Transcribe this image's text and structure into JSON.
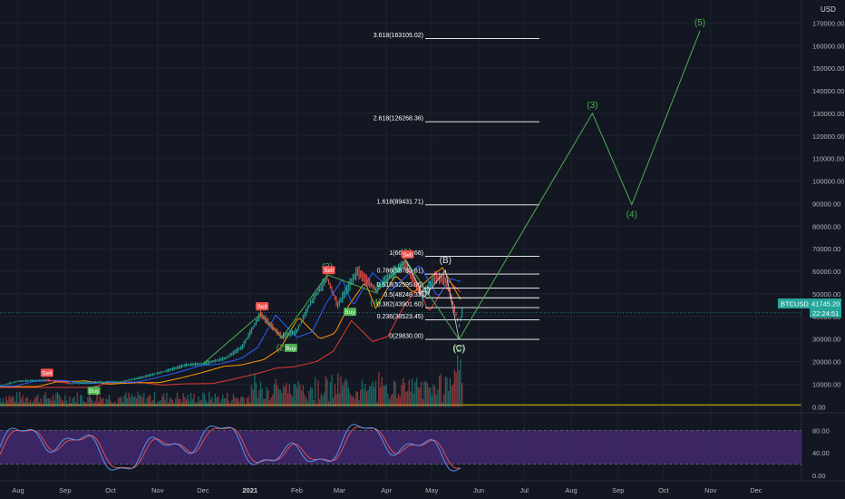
{
  "currency": "USD",
  "ticker_label": "BTCUSD",
  "last_price": "41745.20",
  "countdown": "22:24:51",
  "colors": {
    "background": "#131722",
    "grid": "#1e2230",
    "text": "#b2b5be",
    "wave": "#4caf50",
    "fib": "#ffffff",
    "sell": "#ef5350",
    "buy": "#4caf50",
    "ema_red": "#e53935",
    "ema_orange": "#ff9800",
    "ema_blue": "#2962ff",
    "stoch_k": "#5b9cf6",
    "stoch_d": "#ef5350",
    "stoch_band": "#4a2c7a",
    "price_line": "#26a69a",
    "yellow_line": "#e0c600"
  },
  "chart_data": {
    "type": "line",
    "title": "",
    "x_axis_ticks": [
      "Aug",
      "Sep",
      "Oct",
      "Nov",
      "Dec",
      "2021",
      "Feb",
      "Mar",
      "Apr",
      "May",
      "Jun",
      "Jul",
      "Aug",
      "Sep",
      "Oct",
      "Nov",
      "Dec"
    ],
    "y_axis_ticks": [
      "170000.00",
      "160000.00",
      "150000.00",
      "140000.00",
      "130000.00",
      "120000.00",
      "110000.00",
      "100000.00",
      "90000.00",
      "80000.00",
      "70000.00",
      "60000.00",
      "50000.00",
      "40000.00",
      "30000.00",
      "20000.00",
      "10000.00",
      "0.00"
    ],
    "ylim": [
      -1500,
      177000
    ],
    "price_series": {
      "name": "BTCUSD",
      "x": [
        "2020-07-20",
        "2020-08-01",
        "2020-08-20",
        "2020-09-05",
        "2020-09-20",
        "2020-10-08",
        "2020-10-21",
        "2020-11-05",
        "2020-11-20",
        "2020-12-01",
        "2020-12-16",
        "2020-12-27",
        "2021-01-08",
        "2021-01-22",
        "2021-02-01",
        "2021-02-10",
        "2021-02-21",
        "2021-02-28",
        "2021-03-13",
        "2021-03-25",
        "2021-04-05",
        "2021-04-13",
        "2021-04-25",
        "2021-05-03",
        "2021-05-10",
        "2021-05-15",
        "2021-05-19",
        "2021-05-21"
      ],
      "y": [
        9200,
        11300,
        11800,
        10300,
        10900,
        11000,
        12900,
        15500,
        18500,
        19000,
        21500,
        26500,
        41000,
        31000,
        33500,
        46000,
        57000,
        45000,
        60000,
        52000,
        59000,
        63500,
        49000,
        57500,
        56000,
        46000,
        36000,
        41745
      ]
    },
    "fib_levels": [
      {
        "label": "3.618(163105.02)",
        "value": 163105.02
      },
      {
        "label": "2.618(126268.36)",
        "value": 126268.36
      },
      {
        "label": "1.618(89431.71)",
        "value": 89431.71
      },
      {
        "label": "1(66666.66)",
        "value": 66666.66
      },
      {
        "label": "0.786(58783.61)",
        "value": 58783.61
      },
      {
        "label": "0.618(52595.06)",
        "value": 52595.06
      },
      {
        "label": "0.5(48248.33)",
        "value": 48248.33
      },
      {
        "label": "0.382(43901.60)",
        "value": 43901.6
      },
      {
        "label": "0.236(38523.45)",
        "value": 38523.45
      },
      {
        "label": "0(29830.00)",
        "value": 29830.0
      }
    ],
    "elliott_wave": {
      "x": [
        "2020-12-01",
        "2021-01-08",
        "2021-01-22",
        "2021-02-21",
        "2021-03-25",
        "2021-04-14",
        "2021-05-19",
        "2021-08-15",
        "2021-09-10",
        "2021-10-25"
      ],
      "y": [
        19000,
        41000,
        30500,
        58500,
        50500,
        64800,
        29830,
        130000,
        89500,
        166500
      ],
      "labels": [
        "",
        "(1)",
        "(2)",
        "(3)",
        "(4)",
        "(1)",
        "(2)",
        "(3)",
        "(4)",
        "(5)"
      ]
    },
    "correction_wave": {
      "x": [
        "2021-04-14",
        "2021-04-26",
        "2021-05-10",
        "2021-05-19"
      ],
      "y": [
        64800,
        48500,
        60500,
        29830
      ],
      "labels": [
        "",
        "(A)",
        "(B)",
        "(C)"
      ]
    },
    "signals": [
      {
        "type": "Sell",
        "x": "2020-08-20",
        "y": 12000
      },
      {
        "type": "Buy",
        "x": "2020-09-20",
        "y": 10500
      },
      {
        "type": "Sell",
        "x": "2021-01-09",
        "y": 41500
      },
      {
        "type": "Buy",
        "x": "2021-01-28",
        "y": 29500
      },
      {
        "type": "Sell",
        "x": "2021-02-22",
        "y": 57500
      },
      {
        "type": "Buy",
        "x": "2021-03-08",
        "y": 45500
      },
      {
        "type": "Sell",
        "x": "2021-04-15",
        "y": 64500
      }
    ],
    "stochastic_ticks": [
      "80.00",
      "40.00",
      "0.00"
    ]
  }
}
